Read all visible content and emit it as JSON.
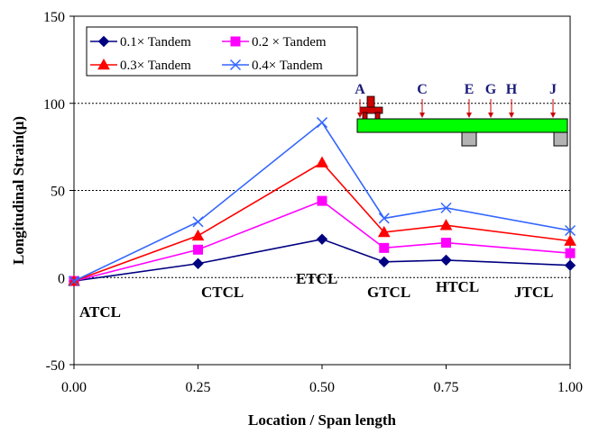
{
  "chart_data": {
    "type": "line",
    "title": "",
    "xlabel": "Location / Span length",
    "ylabel": "Longitudinal Strain(μ)",
    "xlim": [
      0,
      1
    ],
    "ylim": [
      -50,
      150
    ],
    "x_ticks": [
      "0.00",
      "0.25",
      "0.50",
      "0.75",
      "1.00"
    ],
    "y_ticks": [
      "-50",
      "0",
      "50",
      "100",
      "150"
    ],
    "x": [
      0,
      0.25,
      0.5,
      0.625,
      0.75,
      1.0
    ],
    "grid": "y-major",
    "legend_position": "top-left",
    "series": [
      {
        "name": "0.1× Tandem",
        "color": "#000080",
        "marker": "diamond",
        "values": [
          -2,
          8,
          22,
          9,
          10,
          7
        ]
      },
      {
        "name": "0.2 × Tandem",
        "color": "#ff00ff",
        "marker": "square",
        "values": [
          -2,
          16,
          44,
          17,
          20,
          14
        ]
      },
      {
        "name": "0.3× Tandem",
        "color": "#ff0000",
        "marker": "triangle",
        "values": [
          -2,
          24,
          66,
          26,
          30,
          21
        ]
      },
      {
        "name": "0.4× Tandem",
        "color": "#3366ff",
        "marker": "x",
        "values": [
          -2,
          32,
          89,
          34,
          40,
          27
        ]
      }
    ],
    "annotations": [
      "ATCL",
      "CTCL",
      "ETCL",
      "GTCL",
      "HTCL",
      "JTCL"
    ],
    "inset_labels": [
      "A",
      "C",
      "E",
      "G",
      "H",
      "J"
    ]
  },
  "colors": {
    "beam": "#00ff00",
    "support": "#b3b3b3",
    "truck": "#cc0000",
    "arrow": "#cc0000"
  }
}
